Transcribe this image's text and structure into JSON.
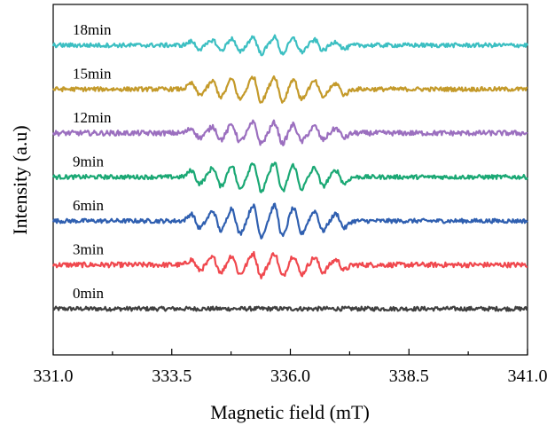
{
  "chart_data": {
    "type": "line",
    "title": "",
    "xlabel": "Magnetic field (mT)",
    "ylabel": "Intensity (a.u)",
    "xlim": [
      331.0,
      341.0
    ],
    "x_tick_labels": [
      "331.0",
      "333.5",
      "336.0",
      "338.5",
      "341.0"
    ],
    "x_ticks": [
      331.0,
      333.5,
      336.0,
      338.5,
      341.0
    ],
    "y_ticks": false,
    "grid": false,
    "legend": "none",
    "offset_stacked": true,
    "peak_fields_mT": [
      334.0,
      334.45,
      334.85,
      335.3,
      335.75,
      336.15,
      336.6,
      337.05
    ],
    "series": [
      {
        "name": "0min",
        "color": "#404040",
        "baseline": 0.0,
        "peak_amplitude": 0.0,
        "noise": 0.1
      },
      {
        "name": "3min",
        "color": "#f0484e",
        "baseline": 1.0,
        "peak_amplitude": 0.55,
        "noise": 0.12
      },
      {
        "name": "6min",
        "color": "#2f5fb0",
        "baseline": 2.0,
        "peak_amplitude": 0.75,
        "noise": 0.1
      },
      {
        "name": "9min",
        "color": "#1aa874",
        "baseline": 3.0,
        "peak_amplitude": 0.7,
        "noise": 0.1
      },
      {
        "name": "12min",
        "color": "#9b6fbf",
        "baseline": 4.0,
        "peak_amplitude": 0.5,
        "noise": 0.12
      },
      {
        "name": "15min",
        "color": "#c49a2a",
        "baseline": 5.0,
        "peak_amplitude": 0.6,
        "noise": 0.1
      },
      {
        "name": "18min",
        "color": "#3cbfc2",
        "baseline": 6.0,
        "peak_amplitude": 0.4,
        "noise": 0.1
      }
    ]
  }
}
